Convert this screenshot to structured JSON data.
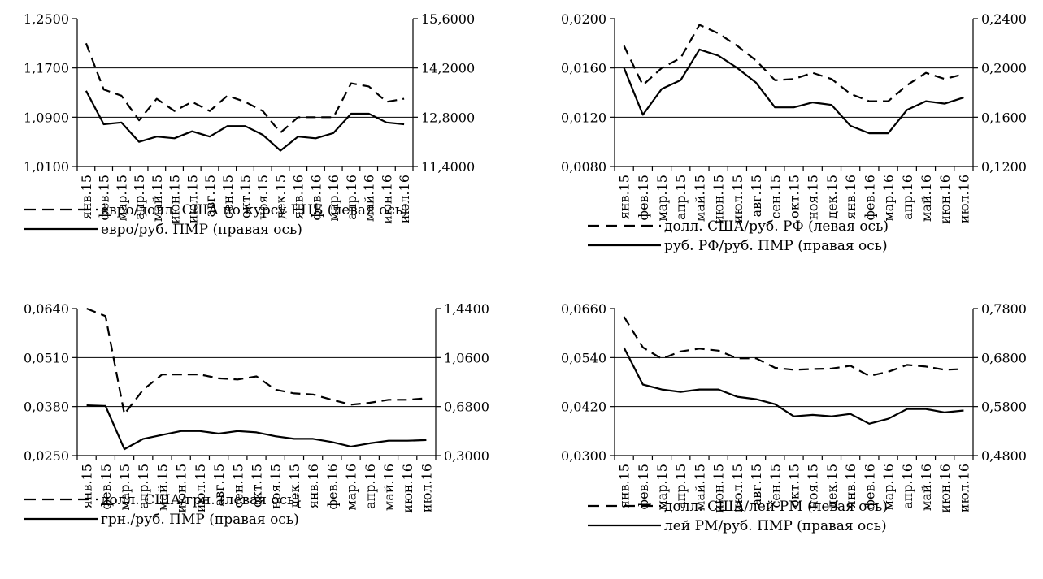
{
  "chart_data": [
    {
      "type": "line",
      "categories": [
        "янв.15",
        "фев.15",
        "мар.15",
        "апр.15",
        "май.15",
        "июн.15",
        "июл.15",
        "авг.15",
        "сен.15",
        "окт.15",
        "ноя.15",
        "дек.15",
        "янв.16",
        "фев.16",
        "мар.16",
        "апр.16",
        "май.16",
        "июн.16",
        "июл.16"
      ],
      "y_left": {
        "range": [
          1.01,
          1.25
        ],
        "ticks": [
          "1,0100",
          "1,0900",
          "1,1700",
          "1,2500"
        ],
        "tick_values": [
          1.01,
          1.09,
          1.17,
          1.25
        ]
      },
      "y_right": {
        "range": [
          11.4,
          15.6
        ],
        "ticks": [
          "11,4000",
          "12,8000",
          "14,2000",
          "15,6000"
        ]
      },
      "gridlines": [
        1.09,
        1.17
      ],
      "series": [
        {
          "name": "евро/долл. США по курсу ЕЦБ (левая ось)",
          "axis": "left",
          "style": "dashed",
          "values": [
            1.21,
            1.135,
            1.125,
            1.085,
            1.12,
            1.1,
            1.115,
            1.1,
            1.125,
            1.115,
            1.1,
            1.065,
            1.09,
            1.09,
            1.09,
            1.145,
            1.14,
            1.115,
            1.12
          ]
        },
        {
          "name": "евро/руб. ПМР (правая ось)",
          "axis": "right",
          "style": "solid",
          "values": [
            13.55,
            12.6,
            12.65,
            12.1,
            12.25,
            12.2,
            12.4,
            12.25,
            12.55,
            12.55,
            12.3,
            11.85,
            12.25,
            12.2,
            12.35,
            12.9,
            12.9,
            12.65,
            12.6
          ]
        }
      ]
    },
    {
      "type": "line",
      "categories": [
        "янв.15",
        "фев.15",
        "мар.15",
        "апр.15",
        "май.15",
        "июн.15",
        "июл.15",
        "авг.15",
        "сен.15",
        "окт.15",
        "ноя.15",
        "дек.15",
        "янв.16",
        "фев.16",
        "мар.16",
        "апр.16",
        "май.16",
        "июн.16",
        "июл.16"
      ],
      "y_left": {
        "range": [
          0.008,
          0.02
        ],
        "ticks": [
          "0,0080",
          "0,0120",
          "0,0160",
          "0,0200"
        ],
        "tick_values": [
          0.008,
          0.012,
          0.016,
          0.02
        ]
      },
      "y_right": {
        "range": [
          0.12,
          0.24
        ],
        "ticks": [
          "0,1200",
          "0,1600",
          "0,2000",
          "0,2400"
        ]
      },
      "gridlines": [
        0.012,
        0.016
      ],
      "series": [
        {
          "name": "долл. США/руб. РФ (левая ось)",
          "axis": "left",
          "style": "dashed",
          "values": [
            0.0178,
            0.0146,
            0.016,
            0.0168,
            0.0195,
            0.0188,
            0.0178,
            0.0166,
            0.015,
            0.0151,
            0.0156,
            0.0151,
            0.0139,
            0.0133,
            0.0133,
            0.0146,
            0.0156,
            0.0151,
            0.0155
          ]
        },
        {
          "name": "руб. РФ/руб. ПМР (правая ось)",
          "axis": "right",
          "style": "solid",
          "values": [
            0.2,
            0.162,
            0.183,
            0.19,
            0.215,
            0.21,
            0.2,
            0.188,
            0.168,
            0.168,
            0.172,
            0.17,
            0.153,
            0.147,
            0.147,
            0.166,
            0.173,
            0.171,
            0.176
          ]
        }
      ]
    },
    {
      "type": "line",
      "categories": [
        "янв.15",
        "фев.15",
        "мар.15",
        "апр.15",
        "май.15",
        "июн.15",
        "июл.15",
        "авг.15",
        "сен.15",
        "окт.15",
        "ноя.15",
        "дек.15",
        "янв.16",
        "фев.16",
        "мар.16",
        "апр.16",
        "май.16",
        "июн.16",
        "июл.16"
      ],
      "y_left": {
        "range": [
          0.025,
          0.064
        ],
        "ticks": [
          "0,0250",
          "0,0380",
          "0,0510",
          "0,0640"
        ],
        "tick_values": [
          0.025,
          0.038,
          0.051,
          0.064
        ]
      },
      "y_right": {
        "range": [
          0.3,
          1.44
        ],
        "ticks": [
          "0,3000",
          "0,6800",
          "1,0600",
          "1,4400"
        ]
      },
      "gridlines": [
        0.038,
        0.051
      ],
      "series": [
        {
          "name": "долл. США/грн. (левая ось)",
          "axis": "left",
          "style": "dashed",
          "values": [
            0.064,
            0.062,
            0.036,
            0.0425,
            0.0465,
            0.0465,
            0.0465,
            0.0455,
            0.0452,
            0.046,
            0.0425,
            0.0415,
            0.0412,
            0.0398,
            0.0385,
            0.039,
            0.0398,
            0.0398,
            0.0402
          ]
        },
        {
          "name": "грн./руб. ПМР (правая ось)",
          "axis": "right",
          "style": "solid",
          "values": [
            0.69,
            0.685,
            0.35,
            0.43,
            0.46,
            0.49,
            0.49,
            0.47,
            0.49,
            0.48,
            0.45,
            0.43,
            0.43,
            0.405,
            0.37,
            0.395,
            0.415,
            0.415,
            0.42
          ]
        }
      ]
    },
    {
      "type": "line",
      "categories": [
        "янв.15",
        "фев.15",
        "мар.15",
        "апр.15",
        "май.15",
        "июн.15",
        "июл.15",
        "авг.15",
        "сен.15",
        "окт.15",
        "ноя.15",
        "дек.15",
        "янв.16",
        "фев.16",
        "мар.16",
        "апр.16",
        "май.16",
        "июн.16",
        "июл.16"
      ],
      "y_left": {
        "range": [
          0.03,
          0.066
        ],
        "ticks": [
          "0,0300",
          "0,0420",
          "0,0540",
          "0,0660"
        ],
        "tick_values": [
          0.03,
          0.042,
          0.054,
          0.066
        ]
      },
      "y_right": {
        "range": [
          0.48,
          0.78
        ],
        "ticks": [
          "0,4800",
          "0,5800",
          "0,6800",
          "0,7800"
        ]
      },
      "gridlines": [
        0.042,
        0.054
      ],
      "series": [
        {
          "name": "долл. США/лей РМ (левая ось)",
          "axis": "left",
          "style": "dashed",
          "values": [
            0.064,
            0.0565,
            0.0537,
            0.0555,
            0.0562,
            0.0557,
            0.0538,
            0.0538,
            0.0515,
            0.051,
            0.0512,
            0.0513,
            0.052,
            0.0495,
            0.0505,
            0.0522,
            0.0518,
            0.051,
            0.0512
          ]
        },
        {
          "name": "лей РМ/руб. ПМР (правая ось)",
          "axis": "right",
          "style": "solid",
          "values": [
            0.7,
            0.625,
            0.615,
            0.61,
            0.615,
            0.615,
            0.6,
            0.595,
            0.585,
            0.56,
            0.563,
            0.56,
            0.565,
            0.545,
            0.555,
            0.575,
            0.575,
            0.568,
            0.572
          ]
        }
      ]
    }
  ],
  "colors": {
    "line": "#000000",
    "grid": "#000000",
    "background": "#ffffff"
  }
}
